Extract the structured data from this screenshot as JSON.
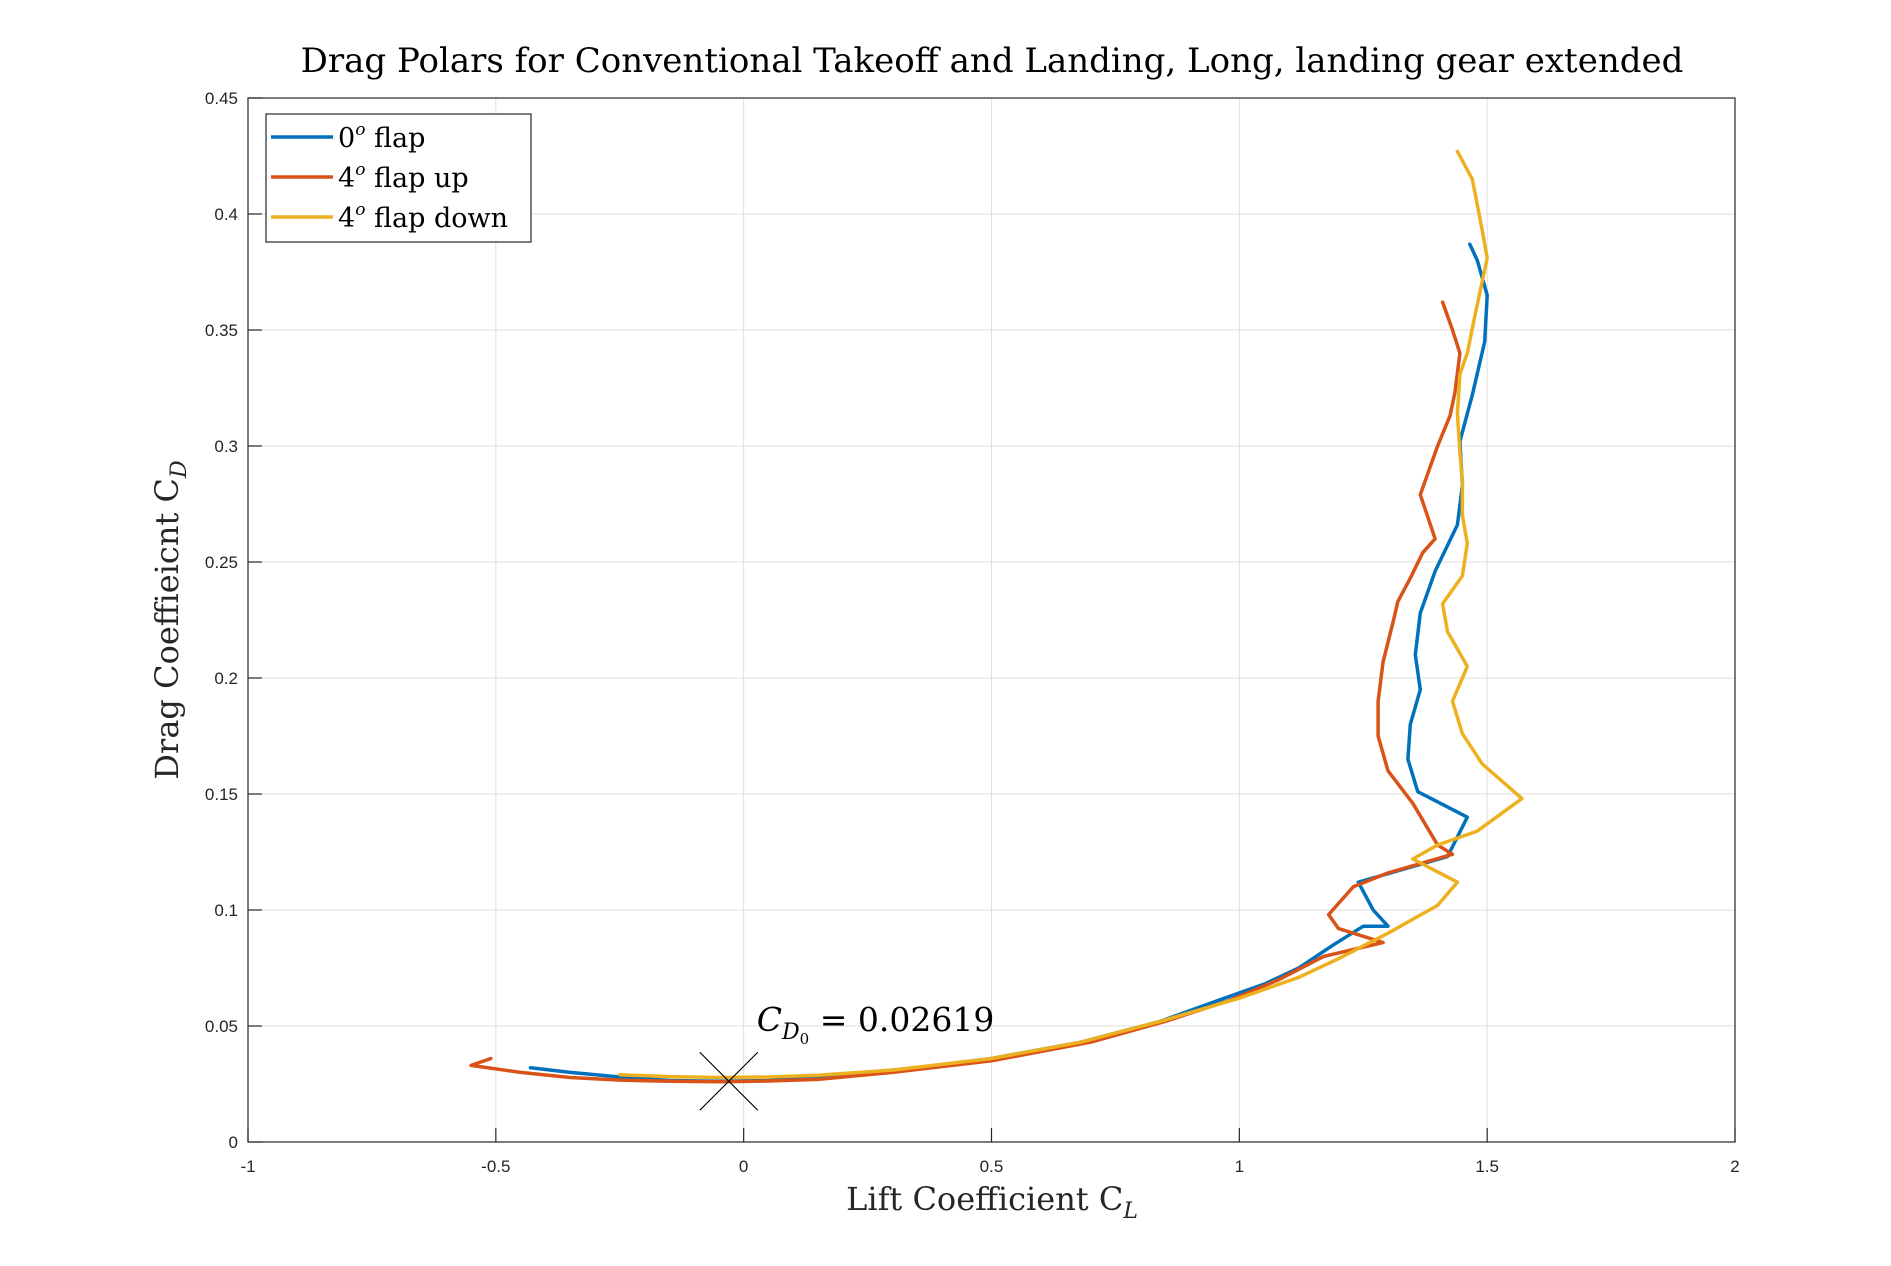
{
  "chart_data": {
    "type": "line",
    "title": "Drag Polars for Conventional Takeoff and Landing, Long, landing gear extended",
    "xlabel": "Lift Coefficient C",
    "xlabel_sub": "L",
    "ylabel": "Drag Coeffieicnt C",
    "ylabel_sub": "D",
    "xlim": [
      -1,
      2
    ],
    "ylim": [
      0,
      0.45
    ],
    "xticks": [
      -1,
      -0.5,
      0,
      0.5,
      1,
      1.5,
      2
    ],
    "xtick_labels": [
      "-1",
      "-0.5",
      "0",
      "0.5",
      "1",
      "1.5",
      "2"
    ],
    "yticks": [
      0,
      0.05,
      0.1,
      0.15,
      0.2,
      0.25,
      0.3,
      0.35,
      0.4,
      0.45
    ],
    "ytick_labels": [
      "0",
      "0.05",
      "0.1",
      "0.15",
      "0.2",
      "0.25",
      "0.3",
      "0.35",
      "0.4",
      "0.45"
    ],
    "grid": true,
    "legend_position": "top-left",
    "series": [
      {
        "name": "0° flap",
        "legend_base": "0",
        "legend_sup": "o",
        "legend_rest": " flap",
        "color": "#0072BD",
        "x": [
          -0.43,
          -0.35,
          -0.25,
          -0.15,
          -0.05,
          0.05,
          0.15,
          0.25,
          0.35,
          0.5,
          0.68,
          0.84,
          0.97,
          1.05,
          1.12,
          1.19,
          1.25,
          1.3,
          1.27,
          1.24,
          1.42,
          1.46,
          1.36,
          1.34,
          1.345,
          1.365,
          1.355,
          1.365,
          1.395,
          1.44,
          1.45,
          1.445,
          1.47,
          1.495,
          1.5,
          1.48,
          1.465
        ],
        "y": [
          0.032,
          0.03,
          0.028,
          0.0265,
          0.0262,
          0.0265,
          0.028,
          0.03,
          0.032,
          0.036,
          0.043,
          0.052,
          0.062,
          0.068,
          0.075,
          0.085,
          0.093,
          0.093,
          0.1,
          0.112,
          0.123,
          0.14,
          0.151,
          0.165,
          0.18,
          0.195,
          0.21,
          0.228,
          0.246,
          0.266,
          0.283,
          0.302,
          0.322,
          0.345,
          0.365,
          0.38,
          0.387
        ]
      },
      {
        "name": "4° flap up",
        "legend_base": "4",
        "legend_sup": "o",
        "legend_rest": " flap up",
        "color": "#D95319",
        "x": [
          -0.51,
          -0.55,
          -0.45,
          -0.35,
          -0.25,
          -0.15,
          -0.05,
          0.05,
          0.15,
          0.3,
          0.5,
          0.7,
          0.85,
          0.98,
          1.08,
          1.17,
          1.29,
          1.2,
          1.18,
          1.23,
          1.3,
          1.43,
          1.4,
          1.35,
          1.3,
          1.28,
          1.28,
          1.29,
          1.31,
          1.32,
          1.345,
          1.37,
          1.395,
          1.365,
          1.38,
          1.4,
          1.425,
          1.435,
          1.445,
          1.43,
          1.41
        ],
        "y": [
          0.036,
          0.033,
          0.03,
          0.0278,
          0.0267,
          0.0262,
          0.026,
          0.0263,
          0.027,
          0.03,
          0.035,
          0.043,
          0.052,
          0.061,
          0.07,
          0.08,
          0.086,
          0.092,
          0.098,
          0.11,
          0.116,
          0.124,
          0.128,
          0.146,
          0.16,
          0.175,
          0.19,
          0.207,
          0.224,
          0.233,
          0.243,
          0.254,
          0.26,
          0.279,
          0.288,
          0.3,
          0.313,
          0.323,
          0.34,
          0.35,
          0.362
        ]
      },
      {
        "name": "4° flap down",
        "legend_base": "4",
        "legend_sup": "o",
        "legend_rest": " flap down",
        "color": "#EDB120",
        "x": [
          -0.25,
          -0.15,
          -0.05,
          0.05,
          0.15,
          0.3,
          0.5,
          0.68,
          0.84,
          1.0,
          1.12,
          1.2,
          1.3,
          1.4,
          1.44,
          1.35,
          1.4,
          1.48,
          1.57,
          1.49,
          1.45,
          1.43,
          1.46,
          1.42,
          1.41,
          1.45,
          1.46,
          1.45,
          1.45,
          1.445,
          1.44,
          1.445,
          1.46,
          1.475,
          1.5,
          1.49,
          1.48,
          1.47,
          1.44
        ],
        "y": [
          0.029,
          0.0282,
          0.0278,
          0.028,
          0.0288,
          0.031,
          0.036,
          0.043,
          0.052,
          0.062,
          0.071,
          0.079,
          0.09,
          0.102,
          0.112,
          0.122,
          0.128,
          0.134,
          0.148,
          0.163,
          0.176,
          0.19,
          0.205,
          0.22,
          0.232,
          0.244,
          0.258,
          0.27,
          0.285,
          0.297,
          0.314,
          0.331,
          0.34,
          0.356,
          0.381,
          0.393,
          0.404,
          0.415,
          0.427
        ]
      }
    ],
    "annotations": [
      {
        "marker": "x",
        "x": -0.03,
        "y": 0.02619,
        "text_base": "C",
        "text_sub": "D",
        "text_subsub": "0",
        "text_rest": " = 0.02619"
      }
    ]
  }
}
